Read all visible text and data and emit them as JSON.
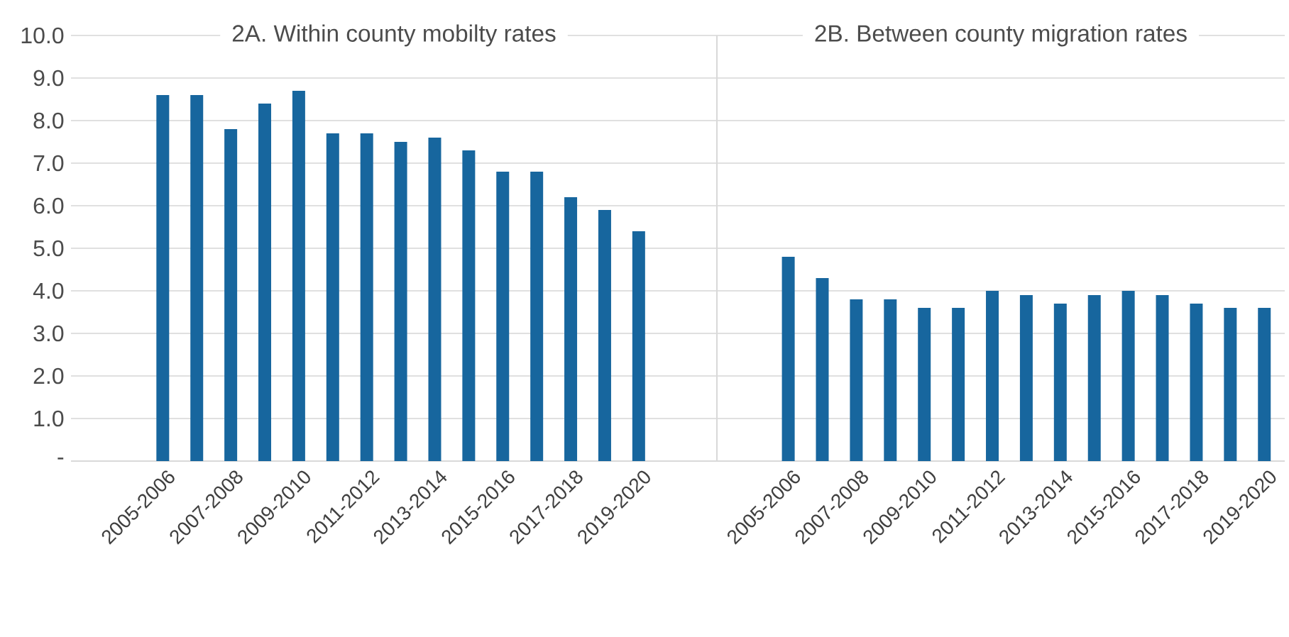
{
  "chart_data": [
    {
      "type": "bar",
      "title": "2A. Within county mobilty rates",
      "categories": [
        "2005-2006",
        null,
        "2007-2008",
        null,
        "2009-2010",
        null,
        "2011-2012",
        null,
        "2013-2014",
        null,
        "2015-2016",
        null,
        "2017-2018",
        null,
        "2019-2020"
      ],
      "values": [
        8.6,
        8.6,
        7.8,
        8.4,
        8.7,
        7.7,
        7.7,
        7.5,
        7.6,
        7.3,
        6.8,
        6.8,
        6.2,
        5.9,
        5.4
      ],
      "color": "#17669e",
      "ylim": [
        0,
        10
      ],
      "yticks": [
        {
          "value": 0,
          "label": "-"
        },
        {
          "value": 1,
          "label": "1.0"
        },
        {
          "value": 2,
          "label": "2.0"
        },
        {
          "value": 3,
          "label": "3.0"
        },
        {
          "value": 4,
          "label": "4.0"
        },
        {
          "value": 5,
          "label": "5.0"
        },
        {
          "value": 6,
          "label": "6.0"
        },
        {
          "value": 7,
          "label": "7.0"
        },
        {
          "value": 8,
          "label": "8.0"
        },
        {
          "value": 9,
          "label": "9.0"
        },
        {
          "value": 10,
          "label": "10.0"
        }
      ],
      "grid": "y"
    },
    {
      "type": "bar",
      "title": "2B. Between county migration rates",
      "categories": [
        "2005-2006",
        null,
        "2007-2008",
        null,
        "2009-2010",
        null,
        "2011-2012",
        null,
        "2013-2014",
        null,
        "2015-2016",
        null,
        "2017-2018",
        null,
        "2019-2020"
      ],
      "values": [
        4.8,
        4.3,
        3.8,
        3.8,
        3.6,
        3.6,
        4.0,
        3.9,
        3.7,
        3.9,
        4.0,
        3.9,
        3.7,
        3.6,
        3.6
      ],
      "color": "#17669e",
      "ylim": [
        0,
        10
      ],
      "yticks": [
        0,
        1,
        2,
        3,
        4,
        5,
        6,
        7,
        8,
        9,
        10
      ],
      "grid": "y",
      "tick_labels": "x"
    }
  ]
}
